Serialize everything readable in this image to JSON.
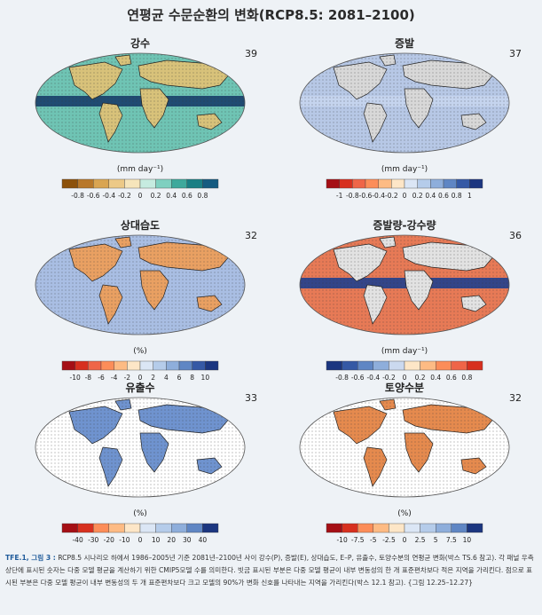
{
  "title": "연평균 수문순환의 변화(RCP8.5: 2081–2100)",
  "panels": [
    {
      "title": "강수",
      "count": "39",
      "unit": "(mm day⁻¹)",
      "ticks": [
        "-0.8",
        "-0.6",
        "-0.4",
        "-0.2",
        "0",
        "0.2",
        "0.4",
        "0.6",
        "0.8"
      ],
      "colors": [
        "#8c510a",
        "#b8782a",
        "#d9a552",
        "#ecc987",
        "#f6e5bb",
        "#c6ebe0",
        "#7fd0c0",
        "#3ea99c",
        "#1a7f84",
        "#155b80"
      ],
      "base": "#6fc4b4",
      "band": "#173e6a",
      "land": "#d8c27a"
    },
    {
      "title": "증발",
      "count": "37",
      "unit": "(mm day⁻¹)",
      "ticks": [
        "-1",
        "-0.8",
        "-0.6",
        "-0.4",
        "-0.2",
        "0",
        "0.2",
        "0.4",
        "0.6",
        "0.8",
        "1"
      ],
      "colors": [
        "#a50f15",
        "#d7301f",
        "#ef6548",
        "#fc8d59",
        "#fdbb84",
        "#fde6c7",
        "#dbe6f5",
        "#b5ccea",
        "#8eaedb",
        "#5f86c4",
        "#3559a5",
        "#1b3680"
      ],
      "base": "#b7c8e6",
      "band": "#c6d5ee",
      "land": "#d8d8d8"
    },
    {
      "title": "상대습도",
      "count": "32",
      "unit": "(%)",
      "ticks": [
        "-10",
        "-8",
        "-6",
        "-4",
        "-2",
        "0",
        "2",
        "4",
        "6",
        "8",
        "10"
      ],
      "colors": [
        "#a50f15",
        "#d7301f",
        "#ef6548",
        "#fc8d59",
        "#fdbb84",
        "#fde6c7",
        "#dbe6f5",
        "#b5ccea",
        "#8eaedb",
        "#5f86c4",
        "#3559a5",
        "#1b3680"
      ],
      "base": "#a9bee3",
      "band": "#a9bee3",
      "land": "#e9a062"
    },
    {
      "title": "증발량-강수량",
      "count": "36",
      "unit": "(mm day⁻¹)",
      "ticks": [
        "-0.8",
        "-0.6",
        "-0.4",
        "-0.2",
        "0",
        "0.2",
        "0.4",
        "0.6",
        "0.8"
      ],
      "colors": [
        "#1b3680",
        "#3559a5",
        "#5f86c4",
        "#8eaedb",
        "#cbd9ef",
        "#fde6c7",
        "#fdbb84",
        "#fc8d59",
        "#ef6548",
        "#d7301f"
      ],
      "base": "#e77a56",
      "band": "#1f3f8f",
      "land": "#e2e2e2"
    },
    {
      "title": "유출수",
      "count": "33",
      "unit": "(%)",
      "ticks": [
        "-40",
        "-30",
        "-20",
        "-10",
        "0",
        "10",
        "20",
        "30",
        "40"
      ],
      "colors": [
        "#a50f15",
        "#d7301f",
        "#fc8d59",
        "#fdbb84",
        "#fde6c7",
        "#dbe6f5",
        "#b5ccea",
        "#8eaedb",
        "#5f86c4",
        "#1b3680"
      ],
      "base": "#ffffff",
      "band": "#ffffff",
      "land": "#6f93cf"
    },
    {
      "title": "토양수분",
      "count": "32",
      "unit": "(%)",
      "ticks": [
        "-10",
        "-7.5",
        "-5",
        "-2.5",
        "0",
        "2.5",
        "5",
        "7.5",
        "10"
      ],
      "colors": [
        "#a50f15",
        "#d7301f",
        "#fc8d59",
        "#fdbb84",
        "#fde6c7",
        "#dbe6f5",
        "#b5ccea",
        "#8eaedb",
        "#5f86c4",
        "#1b3680"
      ],
      "base": "#ffffff",
      "band": "#ffffff",
      "land": "#e58a4e"
    }
  ],
  "caption": {
    "label": "TFE.1, 그림 3 :",
    "text": "RCP8.5 시나리오 하에서 1986–2005년 기준 2081년–2100년 사이 강수(P), 증발(E), 상대습도, E–P, 유출수, 토양수분의 연평균 변화(박스 TS.6 참고). 각 패널 우측 상단에 표시된 숫자는 다중 모델 평균을 계산하기 위한 CMIP5모델 수를 의미한다. 빗금 표시된 부분은 다중 모델 평균이 내부 변동성의 한 개 표준편차보다 적은 지역을 가리킨다. 점으로 표시된 부분은 다중 모델 평균이 내부 변동성의 두 개 표준편차보다 크고 모델의 90%가 변화 신호를 나타내는 지역을 가리킨다(박스 12.1 참고). {그림 12.25–12.27}"
  }
}
